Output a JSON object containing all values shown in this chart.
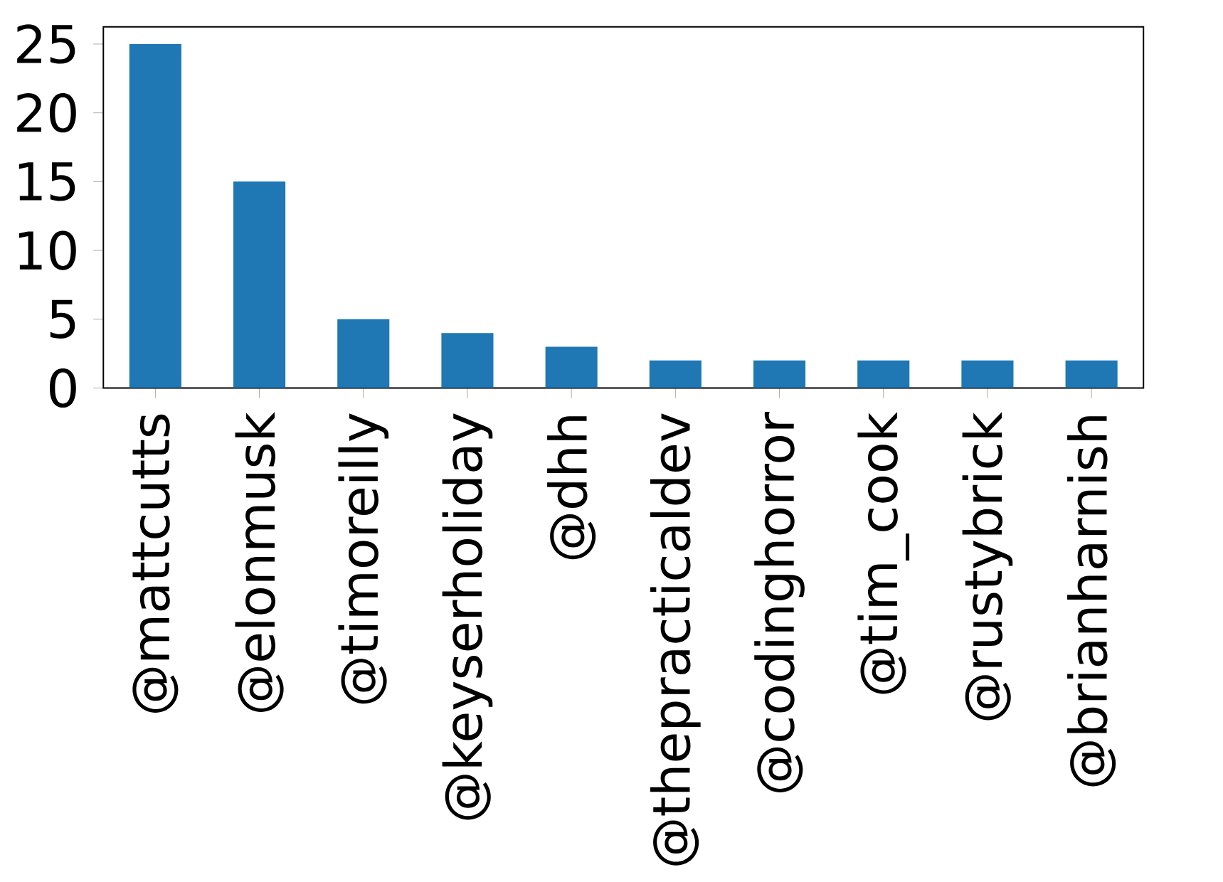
{
  "chart_data": {
    "type": "bar",
    "categories": [
      "@mattcutts",
      "@elonmusk",
      "@timoreilly",
      "@keyserholiday",
      "@dhh",
      "@thepracticaldev",
      "@codinghorror",
      "@tim_cook",
      "@rustybrick",
      "@brianharnish"
    ],
    "values": [
      25,
      15,
      5,
      4,
      3,
      2,
      2,
      2,
      2,
      2
    ],
    "color": "#1f77b4",
    "ylim": [
      0,
      26.25
    ],
    "yticks": [
      0,
      5,
      10,
      15,
      20,
      25
    ]
  }
}
